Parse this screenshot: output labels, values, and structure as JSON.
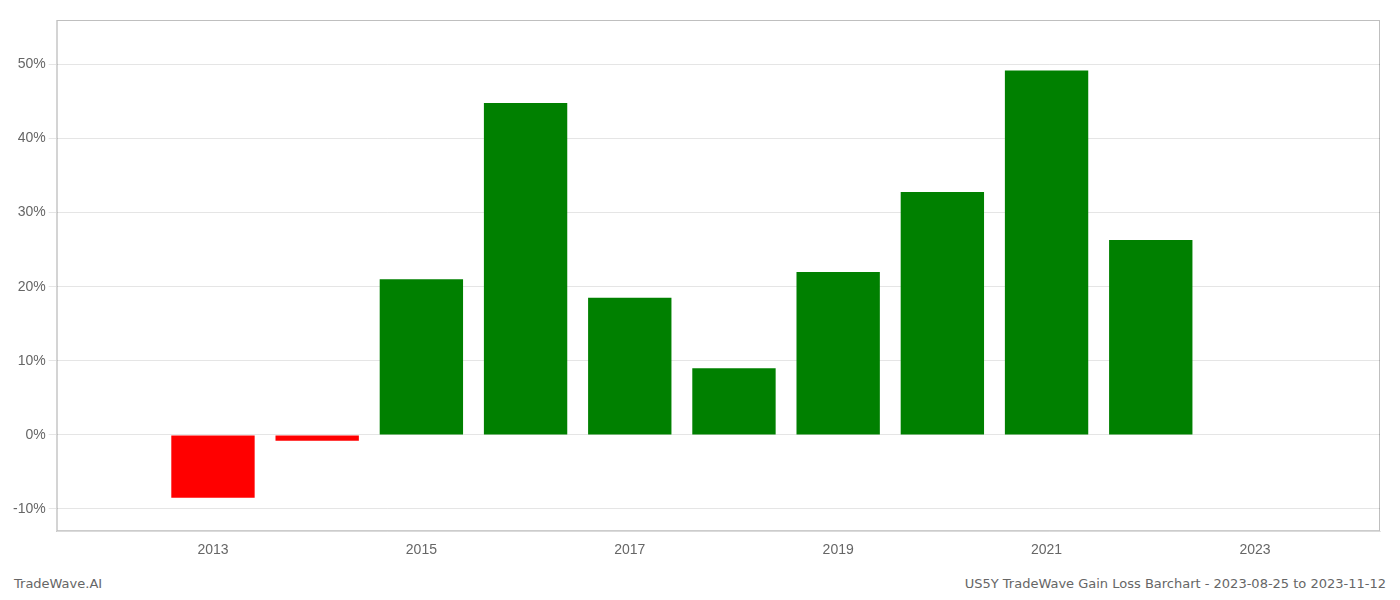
{
  "chart_data": {
    "type": "bar",
    "x": [
      2013,
      2014,
      2015,
      2016,
      2017,
      2018,
      2019,
      2020,
      2021,
      2022
    ],
    "values": [
      -8.5,
      -0.8,
      21.0,
      44.8,
      18.5,
      9.0,
      22.0,
      32.8,
      49.2,
      26.3
    ],
    "colors": [
      "#ff0000",
      "#ff0000",
      "#008000",
      "#008000",
      "#008000",
      "#008000",
      "#008000",
      "#008000",
      "#008000",
      "#008000"
    ],
    "xlim": [
      2011.5,
      2024.2
    ],
    "xticks": [
      2013,
      2015,
      2017,
      2019,
      2021,
      2023
    ],
    "ylim": [
      -13,
      56
    ],
    "yticks": [
      {
        "value": -10,
        "label": "-10%"
      },
      {
        "value": 0,
        "label": "0%"
      },
      {
        "value": 10,
        "label": "10%"
      },
      {
        "value": 20,
        "label": "20%"
      },
      {
        "value": 30,
        "label": "30%"
      },
      {
        "value": 40,
        "label": "40%"
      },
      {
        "value": 50,
        "label": "50%"
      }
    ],
    "grid": "y",
    "annotations": [
      "TradeWave.AI",
      "US5Y TradeWave Gain Loss Barchart - 2023-08-25 to 2023-11-12"
    ]
  }
}
